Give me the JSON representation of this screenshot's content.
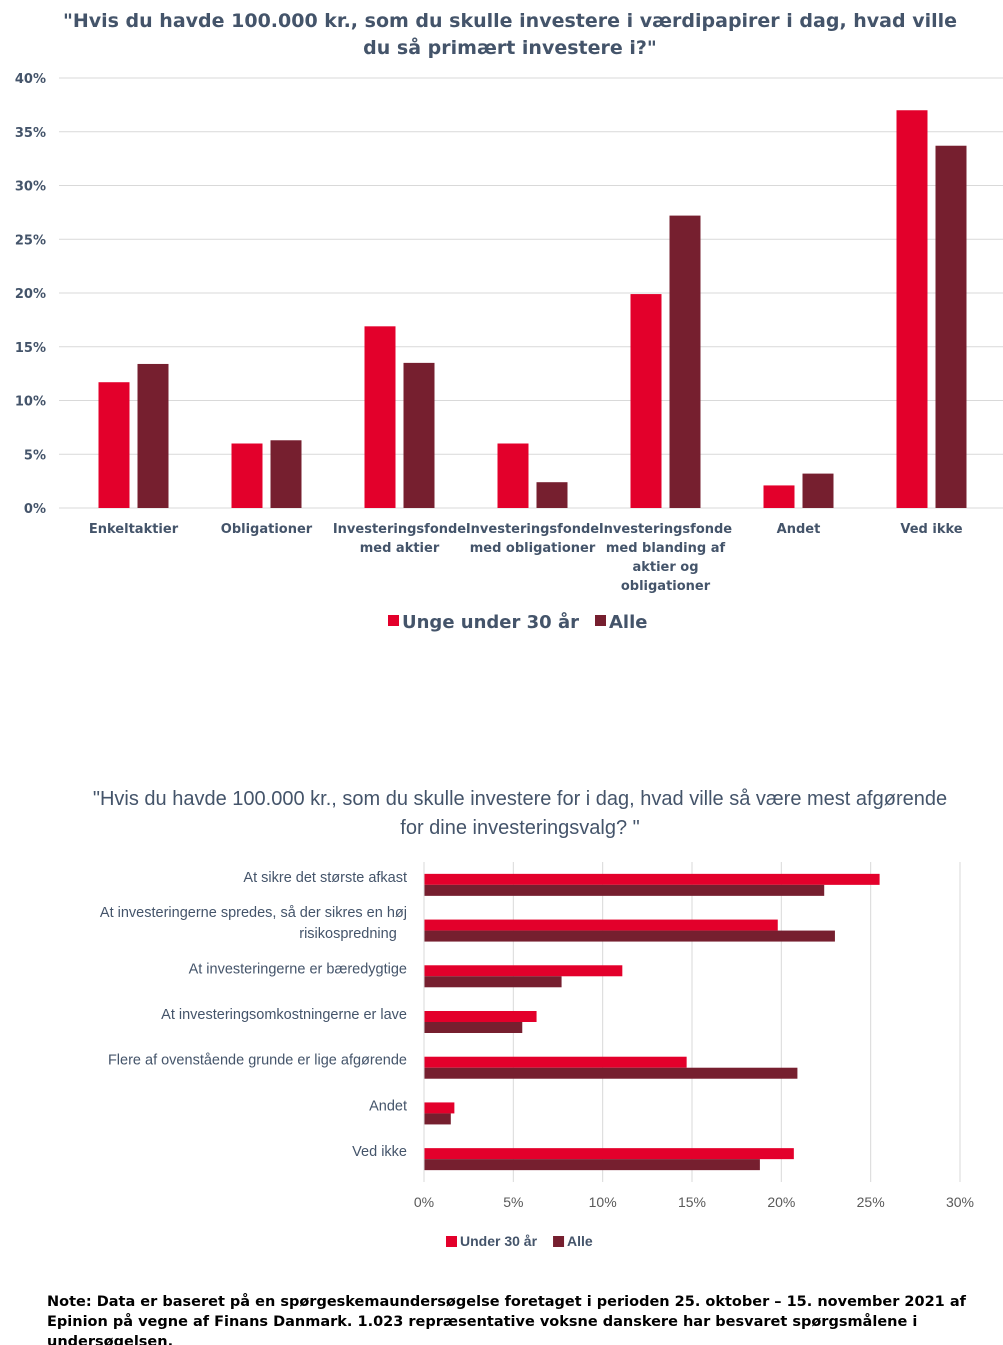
{
  "colors": {
    "young": "#e3002b",
    "all": "#761f2f",
    "grid": "#d9d9d9",
    "text": "#44546a"
  },
  "chart_data": [
    {
      "type": "bar",
      "title": "\"Hvis du havde 100.000 kr., som du skulle investere i værdipapirer i dag, hvad ville du så primært investere i?\"",
      "categories": [
        [
          "Enkeltaktier"
        ],
        [
          "Obligationer"
        ],
        [
          "Investeringsfonde",
          "med aktier"
        ],
        [
          "Investeringsfonde",
          "med obligationer"
        ],
        [
          "Investeringsfonde",
          "med blanding af",
          "aktier og",
          "obligationer"
        ],
        [
          "Andet"
        ],
        [
          "Ved ikke"
        ]
      ],
      "series": [
        {
          "name": "Unge under 30 år",
          "values": [
            11.7,
            6.0,
            16.9,
            6.0,
            19.9,
            2.1,
            37.0
          ]
        },
        {
          "name": "Alle",
          "values": [
            13.4,
            6.3,
            13.5,
            2.4,
            27.2,
            3.2,
            33.7
          ]
        }
      ],
      "ylim": [
        0,
        40
      ],
      "yticks": [
        "0%",
        "5%",
        "10%",
        "15%",
        "20%",
        "25%",
        "30%",
        "35%",
        "40%"
      ],
      "grid": true,
      "legend": "bottom"
    },
    {
      "type": "bar",
      "orientation": "horizontal",
      "title": "\"Hvis du havde 100.000 kr., som du skulle investere for i dag, hvad ville så være mest afgørende for dine investeringsvalg? \"",
      "categories": [
        [
          "At sikre det største afkast"
        ],
        [
          "At investeringerne spredes, så der sikres en høj",
          "risikospredning"
        ],
        [
          "At investeringerne er bæredygtige"
        ],
        [
          "At investeringsomkostningerne er lave"
        ],
        [
          "Flere af ovenstående grunde er lige afgørende"
        ],
        [
          "Andet"
        ],
        [
          "Ved ikke"
        ]
      ],
      "series": [
        {
          "name": "Under 30 år",
          "values": [
            25.5,
            19.8,
            11.1,
            6.3,
            14.7,
            1.7,
            20.7
          ]
        },
        {
          "name": "Alle",
          "values": [
            22.4,
            23.0,
            7.7,
            5.5,
            20.9,
            1.5,
            18.8
          ]
        }
      ],
      "xlim": [
        0,
        30
      ],
      "xticks": [
        "0%",
        "5%",
        "10%",
        "15%",
        "20%",
        "25%",
        "30%"
      ],
      "grid": true,
      "legend": "bottom"
    }
  ],
  "note": "Note: Data er baseret på en spørgeskemaundersøgelse foretaget i perioden 25. oktober – 15. november 2021 af Epinion på vegne af Finans Danmark. 1.023 repræsentative voksne danskere har besvaret spørgsmålene i undersøgelsen."
}
